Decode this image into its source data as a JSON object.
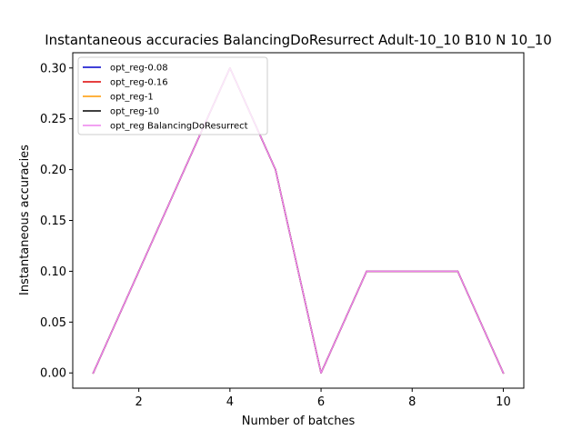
{
  "chart_data": {
    "type": "line",
    "title": "Instantaneous accuracies BalancingDoResurrect Adult-10_10 B10 N 10_10",
    "xlabel": "Number of batches",
    "ylabel": "Instantaneous accuracies",
    "x": [
      1,
      2,
      3,
      4,
      5,
      6,
      7,
      8,
      9,
      10
    ],
    "xlim": [
      0.55,
      10.45
    ],
    "ylim": [
      -0.015,
      0.315
    ],
    "xticks": [
      2,
      4,
      6,
      8,
      10
    ],
    "yticks": [
      0.0,
      0.05,
      0.1,
      0.15,
      0.2,
      0.25,
      0.3
    ],
    "xtick_labels": [
      "2",
      "4",
      "6",
      "8",
      "10"
    ],
    "ytick_labels": [
      "0.00",
      "0.05",
      "0.10",
      "0.15",
      "0.20",
      "0.25",
      "0.30"
    ],
    "grid": false,
    "legend_position": "top-left",
    "series": [
      {
        "name": "opt_reg-0.08",
        "color": "#0000cc",
        "values": [
          0.0,
          0.1,
          0.2,
          0.3,
          0.2,
          0.0,
          0.1,
          0.1,
          0.1,
          0.0
        ]
      },
      {
        "name": "opt_reg-0.16",
        "color": "#dd0000",
        "values": [
          0.0,
          0.1,
          0.2,
          0.3,
          0.2,
          0.0,
          0.1,
          0.1,
          0.1,
          0.0
        ]
      },
      {
        "name": "opt_reg-1",
        "color": "#ff9900",
        "values": [
          0.0,
          0.1,
          0.2,
          0.3,
          0.2,
          0.0,
          0.1,
          0.1,
          0.1,
          0.0
        ]
      },
      {
        "name": "opt_reg-10",
        "color": "#000000",
        "values": [
          0.0,
          0.1,
          0.2,
          0.3,
          0.2,
          0.0,
          0.1,
          0.1,
          0.1,
          0.0
        ]
      },
      {
        "name": "opt_reg BalancingDoResurrect",
        "color": "#ee82ee",
        "values": [
          0.0,
          0.1,
          0.2,
          0.3,
          0.2,
          0.0,
          0.1,
          0.1,
          0.1,
          0.0
        ]
      }
    ]
  }
}
